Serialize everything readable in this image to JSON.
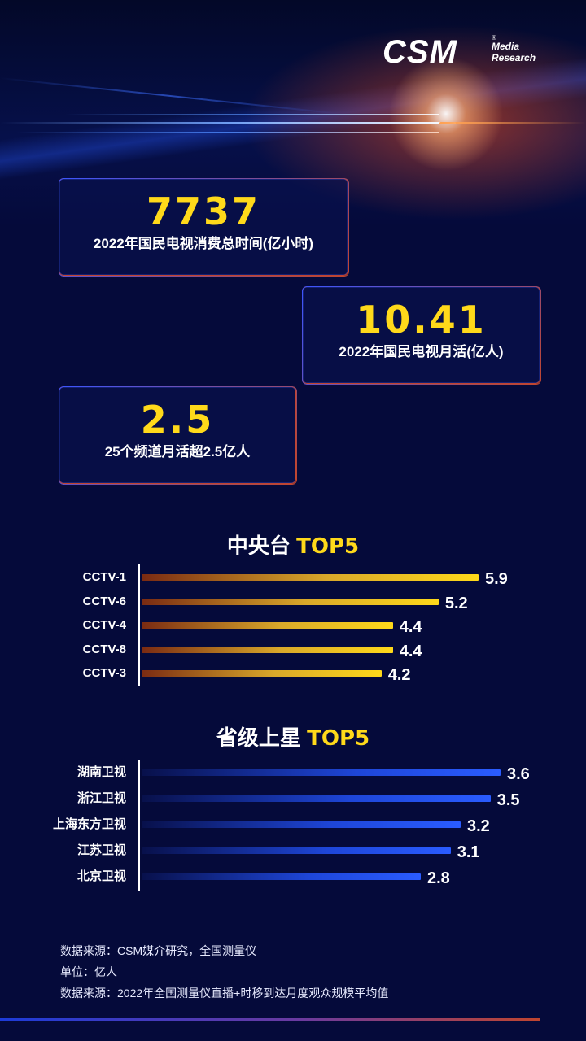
{
  "brand": {
    "logo_main": "CSM",
    "logo_sub_1": "Media",
    "logo_sub_2": "Research",
    "registered": "®"
  },
  "stats": [
    {
      "value": "7737",
      "label": "2022年国民电视消费总时间(亿小时)"
    },
    {
      "value": "10.41",
      "label": "2022年国民电视月活(亿人)"
    },
    {
      "value": "2.5",
      "label": "25个频道月活超2.5亿人"
    }
  ],
  "colors": {
    "accent": "#ffd91a",
    "background": "#050a3a",
    "cctv_bar": "#ffd91a",
    "provincial_bar": "#2a5cff",
    "card_border": "#c0452f"
  },
  "chart_data": [
    {
      "type": "bar",
      "orientation": "horizontal",
      "title_main": "中央台",
      "title_highlight": "TOP5",
      "categories": [
        "CCTV-1",
        "CCTV-6",
        "CCTV-4",
        "CCTV-8",
        "CCTV-3"
      ],
      "values": [
        5.9,
        5.2,
        4.4,
        4.4,
        4.2
      ],
      "xlim": [
        0,
        5.9
      ]
    },
    {
      "type": "bar",
      "orientation": "horizontal",
      "title_main": "省级上星",
      "title_highlight": "TOP5",
      "categories": [
        "湖南卫视",
        "浙江卫视",
        "上海东方卫视",
        "江苏卫视",
        "北京卫视"
      ],
      "values": [
        3.6,
        3.5,
        3.2,
        3.1,
        2.8
      ],
      "xlim": [
        0,
        3.6
      ]
    }
  ],
  "notes": [
    "数据来源：CSM媒介研究，全国测量仪",
    "单位：亿人",
    "数据来源：2022年全国测量仪直播+时移到达月度观众规模平均值"
  ]
}
